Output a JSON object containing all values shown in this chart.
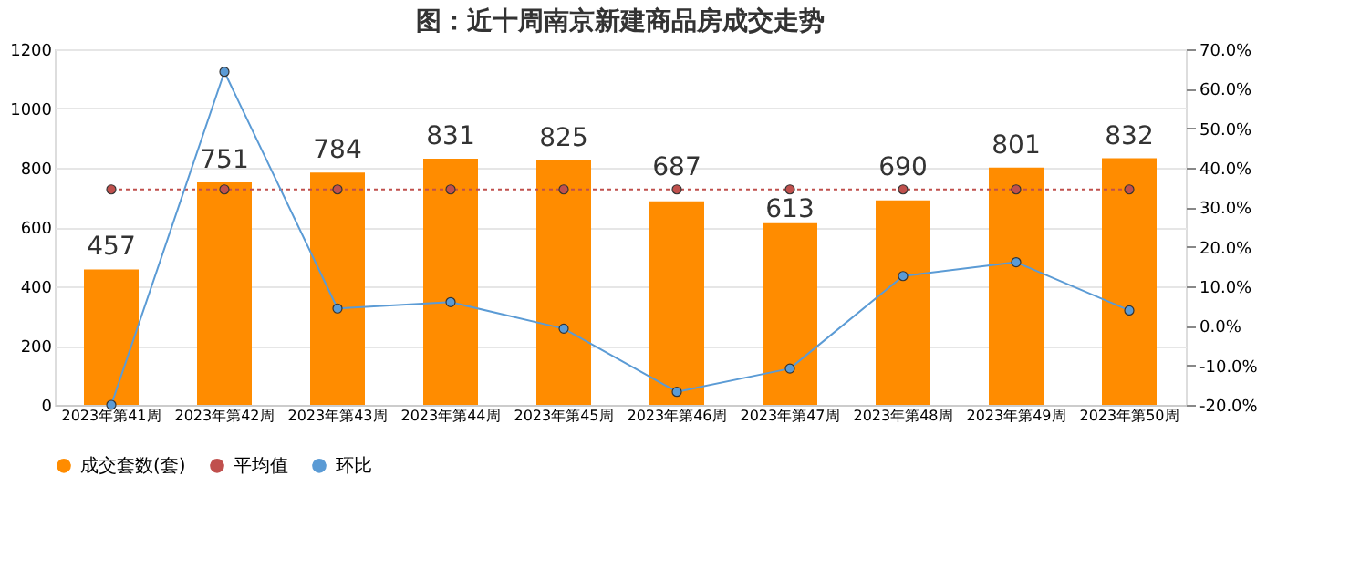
{
  "chart_data": {
    "type": "bar",
    "title": "图：近十周南京新建商品房成交走势",
    "categories": [
      "2023年第41周",
      "2023年第42周",
      "2023年第43周",
      "2023年第44周",
      "2023年第45周",
      "2023年第46周",
      "2023年第47周",
      "2023年第48周",
      "2023年第49周",
      "2023年第50周"
    ],
    "series": [
      {
        "name": "成交套数(套)",
        "color": "#ff8c00",
        "values": [
          457,
          751,
          784,
          831,
          825,
          687,
          613,
          690,
          801,
          832
        ],
        "value_labels": [
          "457",
          "751",
          "784",
          "831",
          "825",
          "687",
          "613",
          "690",
          "801",
          "832"
        ]
      },
      {
        "name": "平均值",
        "type": "line",
        "color": "#c0504d",
        "line_style": "dotted",
        "marker": "circle",
        "values": [
          727,
          727,
          727,
          727,
          727,
          727,
          727,
          727,
          727,
          727
        ]
      },
      {
        "name": "环比",
        "type": "line",
        "color": "#5b9bd5",
        "line_style": "solid",
        "marker": "circle",
        "axis": "y2",
        "values": [
          -20,
          64.3,
          4.4,
          6.0,
          -0.7,
          -16.7,
          -10.8,
          12.6,
          16.1,
          3.9
        ]
      }
    ],
    "ylim": [
      0,
      1200
    ],
    "yticks": [
      0,
      200,
      400,
      600,
      800,
      1000,
      1200
    ],
    "y2lim": [
      -20,
      70
    ],
    "y2ticks": [
      {
        "value": -20,
        "label": "-20.0%"
      },
      {
        "value": -10,
        "label": "-10.0%"
      },
      {
        "value": 0,
        "label": "0.0%"
      },
      {
        "value": 10,
        "label": "10.0%"
      },
      {
        "value": 20,
        "label": "20.0%"
      },
      {
        "value": 30,
        "label": "30.0%"
      },
      {
        "value": 40,
        "label": "40.0%"
      },
      {
        "value": 50,
        "label": "50.0%"
      },
      {
        "value": 60,
        "label": "60.0%"
      },
      {
        "value": 70,
        "label": "70.0%"
      }
    ],
    "grid": "y",
    "legend": "bottom"
  }
}
